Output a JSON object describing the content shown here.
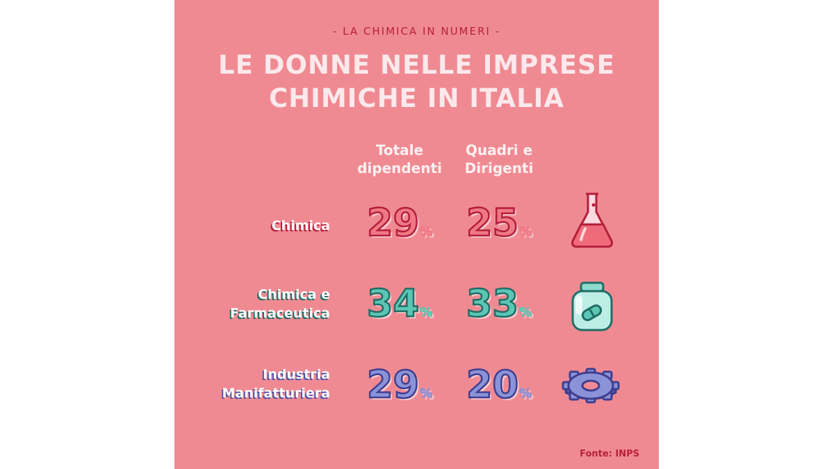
{
  "header": {
    "subtitle": "- LA CHIMICA IN NUMERI -",
    "title_line1": "LE DONNE NELLE IMPRESE",
    "title_line2": "CHIMICHE IN ITALIA"
  },
  "columns": {
    "total_line1": "Totale",
    "total_line2": "dipendenti",
    "managers_line1": "Quadri e",
    "managers_line2": "Dirigenti"
  },
  "rows": [
    {
      "label_line1": "Chimica",
      "label_line2": "",
      "total": "29",
      "managers": "25",
      "unit": "%",
      "color": "#f07885",
      "stroke": "#b31f3b",
      "shadow": "#b31f3b",
      "icon": "flask-icon"
    },
    {
      "label_line1": "Chimica e",
      "label_line2": "Farmaceutica",
      "total": "34",
      "managers": "33",
      "unit": "%",
      "color": "#5cc6b4",
      "stroke": "#1f6e66",
      "shadow": "#1f6e66",
      "icon": "pill-jar-icon"
    },
    {
      "label_line1": "Industria",
      "label_line2": "Manifatturiera",
      "total": "29",
      "managers": "20",
      "unit": "%",
      "color": "#8a93d8",
      "stroke": "#3e3f8f",
      "shadow": "#5055a8",
      "icon": "gear-icon"
    }
  ],
  "chart_data": {
    "type": "table",
    "title": "LE DONNE NELLE IMPRESE CHIMICHE IN ITALIA",
    "subtitle": "- LA CHIMICA IN NUMERI -",
    "columns": [
      "Totale dipendenti",
      "Quadri e Dirigenti"
    ],
    "series": [
      {
        "name": "Totale dipendenti",
        "values": [
          29,
          34,
          29
        ]
      },
      {
        "name": "Quadri e Dirigenti",
        "values": [
          25,
          33,
          20
        ]
      }
    ],
    "categories": [
      "Chimica",
      "Chimica e Farmaceutica",
      "Industria Manifatturiera"
    ],
    "unit": "%"
  },
  "footer": {
    "source": "Fonte: INPS"
  }
}
